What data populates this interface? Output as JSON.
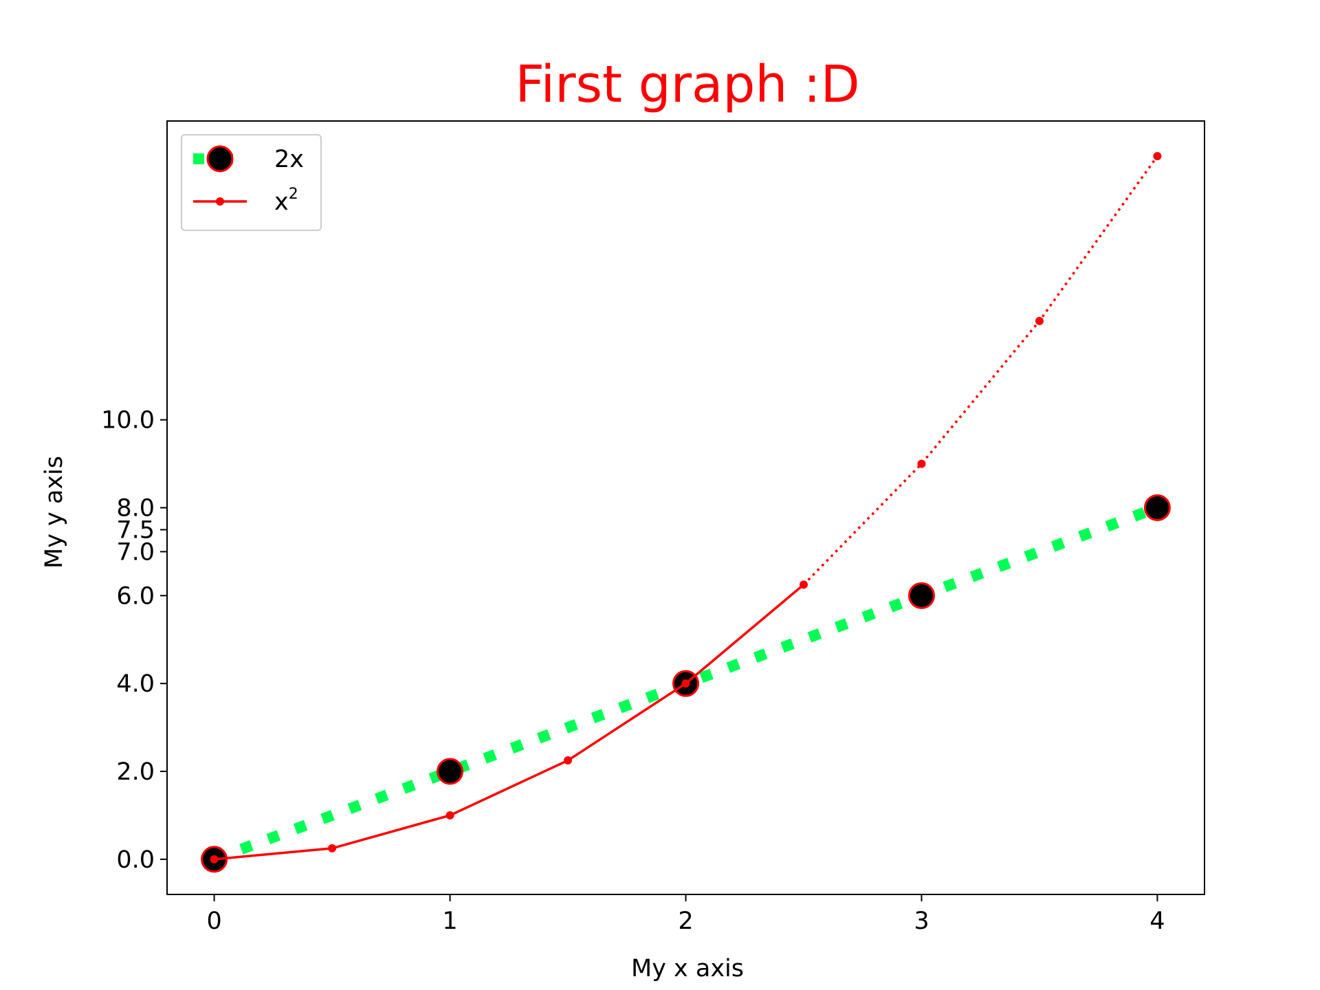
{
  "chart_data": {
    "type": "line",
    "title": "First graph :D",
    "xlabel": "My x axis",
    "ylabel": "My y axis",
    "xlim": [
      -0.2,
      4.2
    ],
    "ylim": [
      -0.8,
      16.8
    ],
    "x_ticks": [
      0,
      1,
      2,
      3,
      4
    ],
    "x_tick_labels": [
      "0",
      "1",
      "2",
      "3",
      "4"
    ],
    "y_ticks": [
      0,
      2,
      4,
      6,
      7,
      7.5,
      8,
      10
    ],
    "y_tick_labels": [
      "0.0",
      "2.0",
      "4.0",
      "6.0",
      "7.0",
      "7.5",
      "8.0",
      "10.0"
    ],
    "grid": false,
    "legend_position": "top-left",
    "series": [
      {
        "name": "2x",
        "x": [
          0,
          1,
          2,
          3,
          4
        ],
        "y": [
          0,
          2,
          4,
          6,
          8
        ],
        "line_color": "#00ff55",
        "line_style": "dotted",
        "marker": "circle",
        "marker_face_color": "#000000",
        "marker_edge_color": "#ff0000"
      },
      {
        "name": "x",
        "name_superscript": "2",
        "segments": [
          {
            "x": [
              0,
              0.5,
              1,
              1.5,
              2,
              2.5
            ],
            "y": [
              0,
              0.25,
              1,
              2.25,
              4,
              6.25
            ],
            "line_style": "solid"
          },
          {
            "x": [
              2.5,
              3,
              3.5,
              4
            ],
            "y": [
              6.25,
              9,
              12.25,
              16
            ],
            "line_style": "dotted"
          }
        ],
        "line_color": "#ff0000",
        "marker": "point",
        "marker_color": "#ff0000"
      }
    ]
  }
}
